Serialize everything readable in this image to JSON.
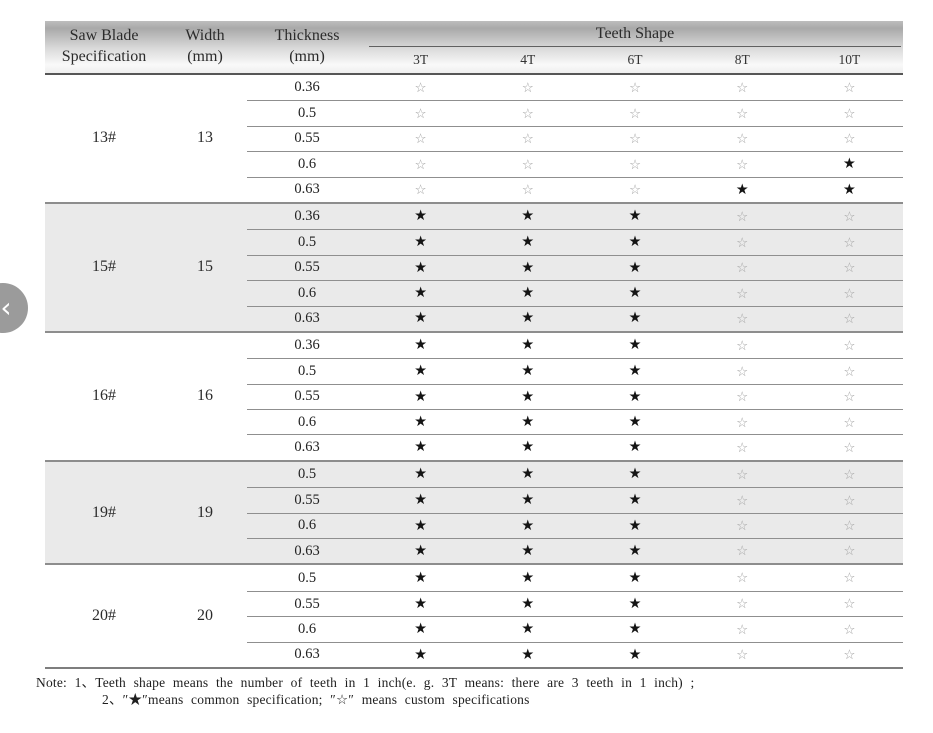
{
  "header": {
    "col_spec": {
      "line1": "Saw Blade",
      "line2": "Specification"
    },
    "col_width": {
      "line1": "Width",
      "line2": "(mm)"
    },
    "col_thickness": {
      "line1": "Thickness",
      "line2": "(mm)"
    },
    "teeth_shape_label": "Teeth Shape",
    "teeth_columns": [
      "3T",
      "4T",
      "6T",
      "8T",
      "10T"
    ]
  },
  "legend": {
    "common": "★",
    "custom": "☆"
  },
  "groups": [
    {
      "spec": "13#",
      "width": "13",
      "shaded": false,
      "rows": [
        {
          "thickness": "0.36",
          "teeth": [
            "custom",
            "custom",
            "custom",
            "custom",
            "custom"
          ]
        },
        {
          "thickness": "0.5",
          "teeth": [
            "custom",
            "custom",
            "custom",
            "custom",
            "custom"
          ]
        },
        {
          "thickness": "0.55",
          "teeth": [
            "custom",
            "custom",
            "custom",
            "custom",
            "custom"
          ]
        },
        {
          "thickness": "0.6",
          "teeth": [
            "custom",
            "custom",
            "custom",
            "custom",
            "common"
          ]
        },
        {
          "thickness": "0.63",
          "teeth": [
            "custom",
            "custom",
            "custom",
            "common",
            "common"
          ]
        }
      ]
    },
    {
      "spec": "15#",
      "width": "15",
      "shaded": true,
      "rows": [
        {
          "thickness": "0.36",
          "teeth": [
            "common",
            "common",
            "common",
            "custom",
            "custom"
          ]
        },
        {
          "thickness": "0.5",
          "teeth": [
            "common",
            "common",
            "common",
            "custom",
            "custom"
          ]
        },
        {
          "thickness": "0.55",
          "teeth": [
            "common",
            "common",
            "common",
            "custom",
            "custom"
          ]
        },
        {
          "thickness": "0.6",
          "teeth": [
            "common",
            "common",
            "common",
            "custom",
            "custom"
          ]
        },
        {
          "thickness": "0.63",
          "teeth": [
            "common",
            "common",
            "common",
            "custom",
            "custom"
          ]
        }
      ]
    },
    {
      "spec": "16#",
      "width": "16",
      "shaded": false,
      "rows": [
        {
          "thickness": "0.36",
          "teeth": [
            "common",
            "common",
            "common",
            "custom",
            "custom"
          ]
        },
        {
          "thickness": "0.5",
          "teeth": [
            "common",
            "common",
            "common",
            "custom",
            "custom"
          ]
        },
        {
          "thickness": "0.55",
          "teeth": [
            "common",
            "common",
            "common",
            "custom",
            "custom"
          ]
        },
        {
          "thickness": "0.6",
          "teeth": [
            "common",
            "common",
            "common",
            "custom",
            "custom"
          ]
        },
        {
          "thickness": "0.63",
          "teeth": [
            "common",
            "common",
            "common",
            "custom",
            "custom"
          ]
        }
      ]
    },
    {
      "spec": "19#",
      "width": "19",
      "shaded": true,
      "rows": [
        {
          "thickness": "0.5",
          "teeth": [
            "common",
            "common",
            "common",
            "custom",
            "custom"
          ]
        },
        {
          "thickness": "0.55",
          "teeth": [
            "common",
            "common",
            "common",
            "custom",
            "custom"
          ]
        },
        {
          "thickness": "0.6",
          "teeth": [
            "common",
            "common",
            "common",
            "custom",
            "custom"
          ]
        },
        {
          "thickness": "0.63",
          "teeth": [
            "common",
            "common",
            "common",
            "custom",
            "custom"
          ]
        }
      ]
    },
    {
      "spec": "20#",
      "width": "20",
      "shaded": false,
      "rows": [
        {
          "thickness": "0.5",
          "teeth": [
            "common",
            "common",
            "common",
            "custom",
            "custom"
          ]
        },
        {
          "thickness": "0.55",
          "teeth": [
            "common",
            "common",
            "common",
            "custom",
            "custom"
          ]
        },
        {
          "thickness": "0.6",
          "teeth": [
            "common",
            "common",
            "common",
            "custom",
            "custom"
          ]
        },
        {
          "thickness": "0.63",
          "teeth": [
            "common",
            "common",
            "common",
            "custom",
            "custom"
          ]
        }
      ]
    }
  ],
  "note": {
    "line1": "Note: 1、Teeth shape means the number of teeth in 1 inch(e. g. 3T  means: there are 3 teeth in 1 inch) ;",
    "line2": "2、″★″means common specification; ″☆″ means custom specifications"
  },
  "nav": {
    "prev_icon": "‹"
  },
  "colors": {
    "shaded_group_bg": "#eaeaea",
    "common_star": "#141414",
    "custom_star": "#a6a6a6",
    "header_gradient_top": "#a9a9a9",
    "header_gradient_bottom": "#efefef"
  }
}
